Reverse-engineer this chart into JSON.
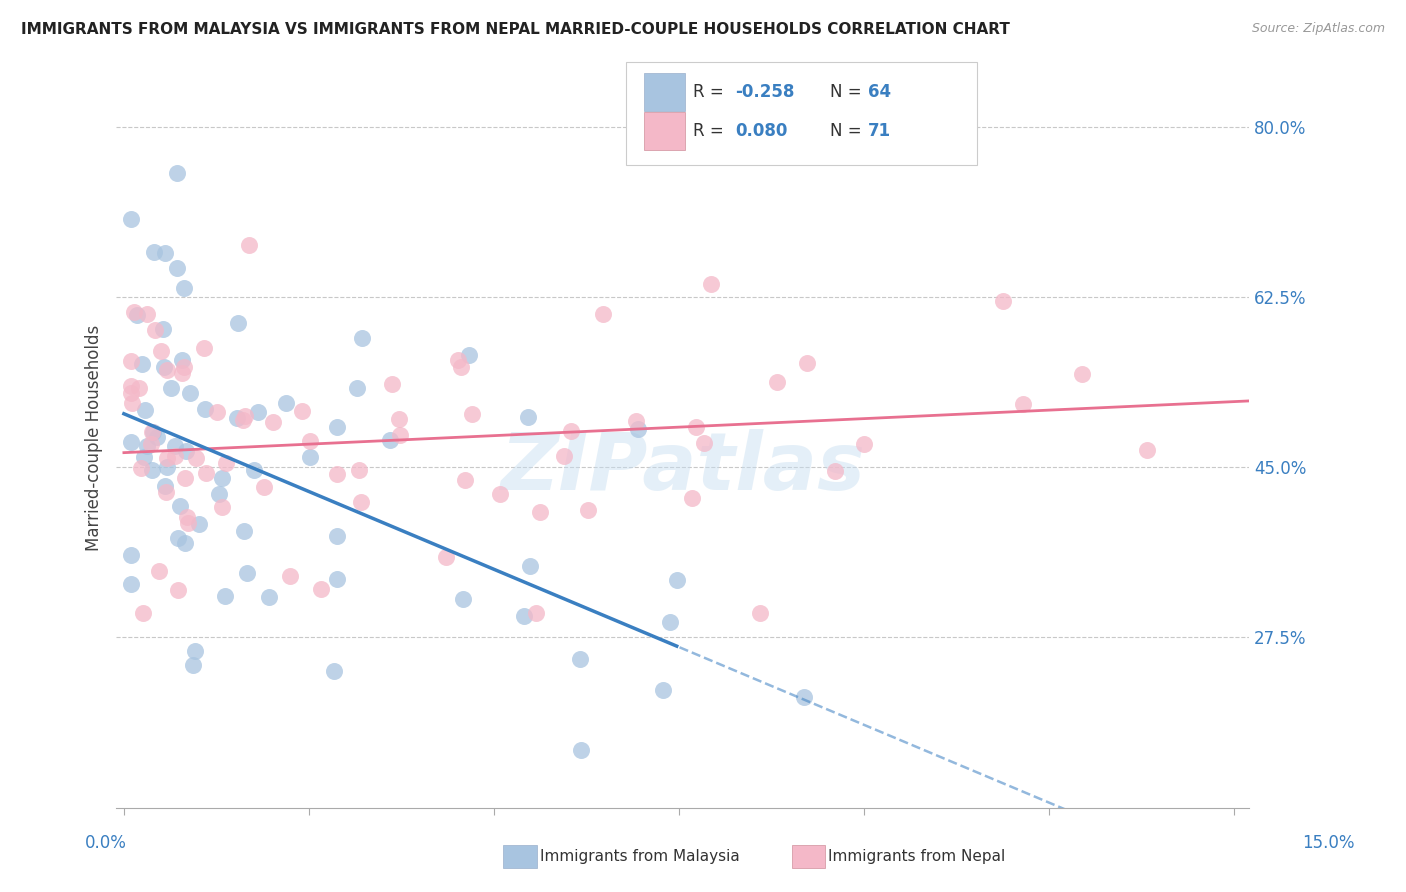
{
  "title": "IMMIGRANTS FROM MALAYSIA VS IMMIGRANTS FROM NEPAL MARRIED-COUPLE HOUSEHOLDS CORRELATION CHART",
  "source": "Source: ZipAtlas.com",
  "ylabel": "Married-couple Households",
  "color_malaysia": "#a8c4e0",
  "color_nepal": "#f4b8c8",
  "line_color_malaysia": "#3a7fc1",
  "line_color_nepal": "#e87090",
  "background_color": "#ffffff",
  "watermark": "ZIPatlas",
  "ytick_positions": [
    0.8,
    0.625,
    0.45,
    0.275
  ],
  "ytick_labels": [
    "80.0%",
    "62.5%",
    "45.0%",
    "27.5%"
  ],
  "xlim": [
    -0.001,
    0.152
  ],
  "ylim": [
    0.1,
    0.86
  ],
  "legend_r_malaysia": "-0.258",
  "legend_n_malaysia": "64",
  "legend_r_nepal": "0.080",
  "legend_n_nepal": "71",
  "malaysia_intercept": 0.505,
  "malaysia_slope": -3.2,
  "nepal_intercept": 0.465,
  "nepal_slope": 0.35,
  "malaysia_line_x_solid_end": 0.075,
  "malaysia_line_x_dashed_end": 0.152,
  "nepal_line_x_end": 0.152
}
